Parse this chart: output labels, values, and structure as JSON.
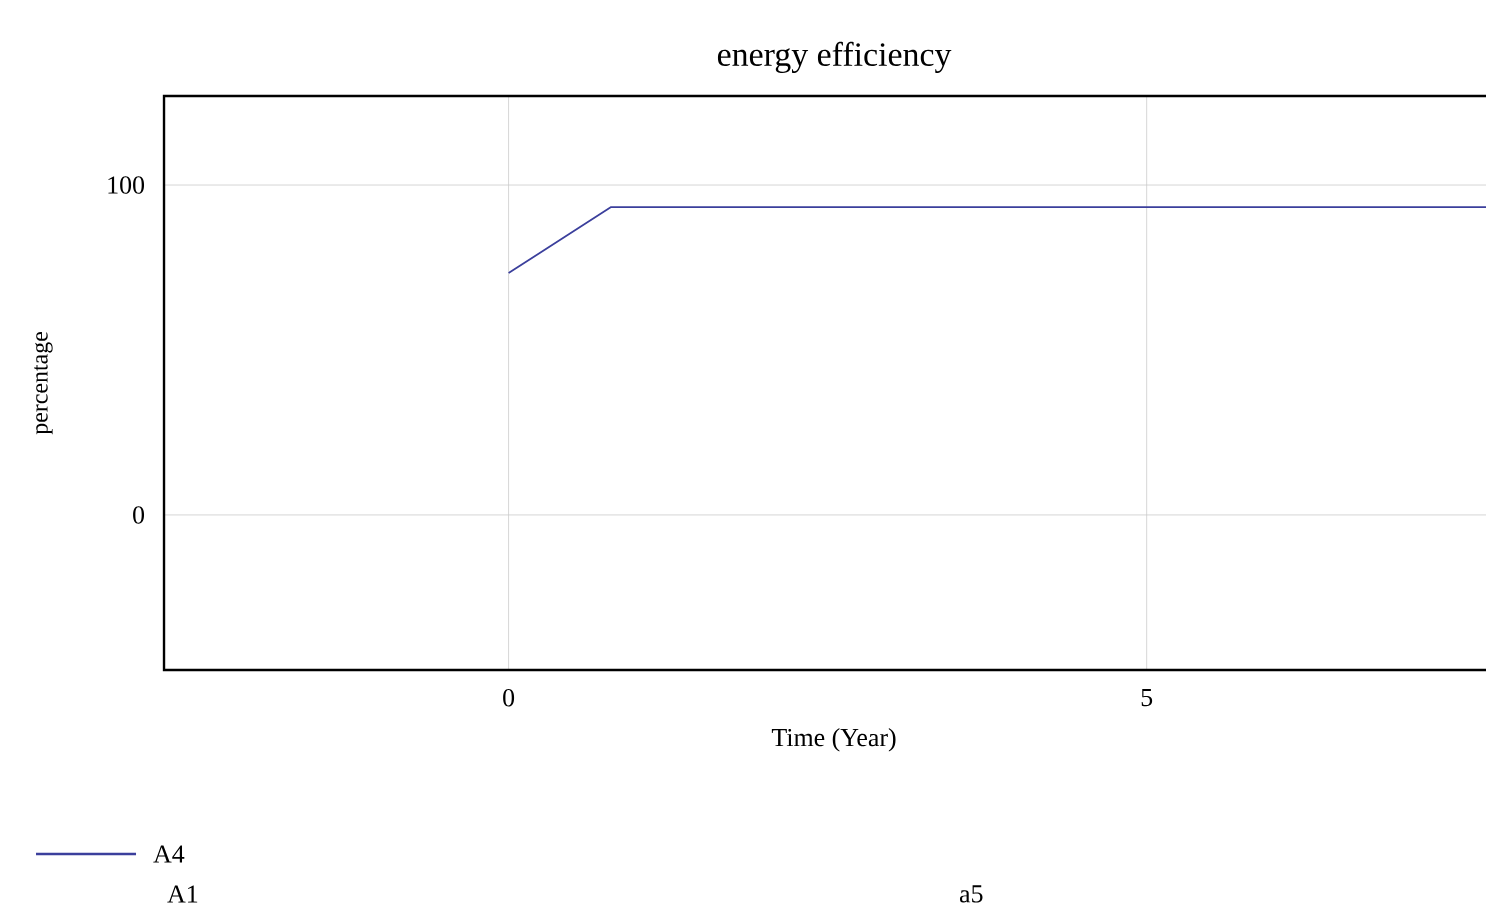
{
  "chart_data": {
    "type": "line",
    "title": "energy efficiency",
    "xlabel": "Time (Year)",
    "ylabel": "percentage",
    "x": [
      0,
      0.8,
      7.8
    ],
    "series": [
      {
        "name": "A4",
        "color": "#3b3f9c",
        "values": [
          73.3,
          93.3,
          93.3
        ]
      }
    ],
    "xlim": [
      -2.7,
      7.8
    ],
    "ylim": [
      -47,
      127
    ],
    "xticks": [
      0,
      5
    ],
    "yticks": [
      0,
      100
    ],
    "grid": true,
    "legend": "bottom left",
    "marker": "none",
    "line_style": "solid",
    "annotations": [
      "A1",
      "a5"
    ]
  }
}
